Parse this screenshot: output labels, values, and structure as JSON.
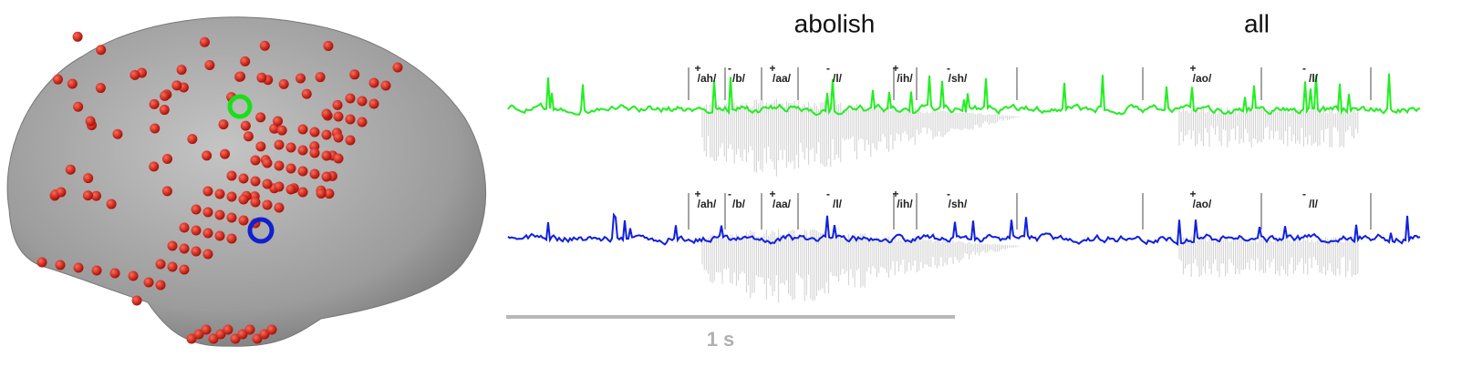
{
  "words": [
    "abolish",
    "all"
  ],
  "tracks": [
    {
      "phonemes": [
        {
          "sign": "+",
          "label": "/ah/"
        },
        {
          "sign": "-",
          "label": "/b/"
        },
        {
          "sign": "+",
          "label": "/aa/"
        },
        {
          "sign": "-",
          "label": "/l/"
        },
        {
          "sign": "+",
          "label": "/ih/"
        },
        {
          "sign": "-",
          "label": "/sh/"
        },
        {
          "sign": "+",
          "label": "/ao/"
        },
        {
          "sign": "-",
          "label": "/l/"
        }
      ]
    },
    {
      "phonemes": [
        {
          "sign": "+",
          "label": "/ah/"
        },
        {
          "sign": "-",
          "label": "/b/"
        },
        {
          "sign": "+",
          "label": "/aa/"
        },
        {
          "sign": "-",
          "label": "/l/"
        },
        {
          "sign": "+",
          "label": "/ih/"
        },
        {
          "sign": "-",
          "label": "/sh/"
        },
        {
          "sign": "+",
          "label": "/ao/"
        },
        {
          "sign": "-",
          "label": "/l/"
        }
      ]
    }
  ],
  "scale_bar": "1 s"
}
